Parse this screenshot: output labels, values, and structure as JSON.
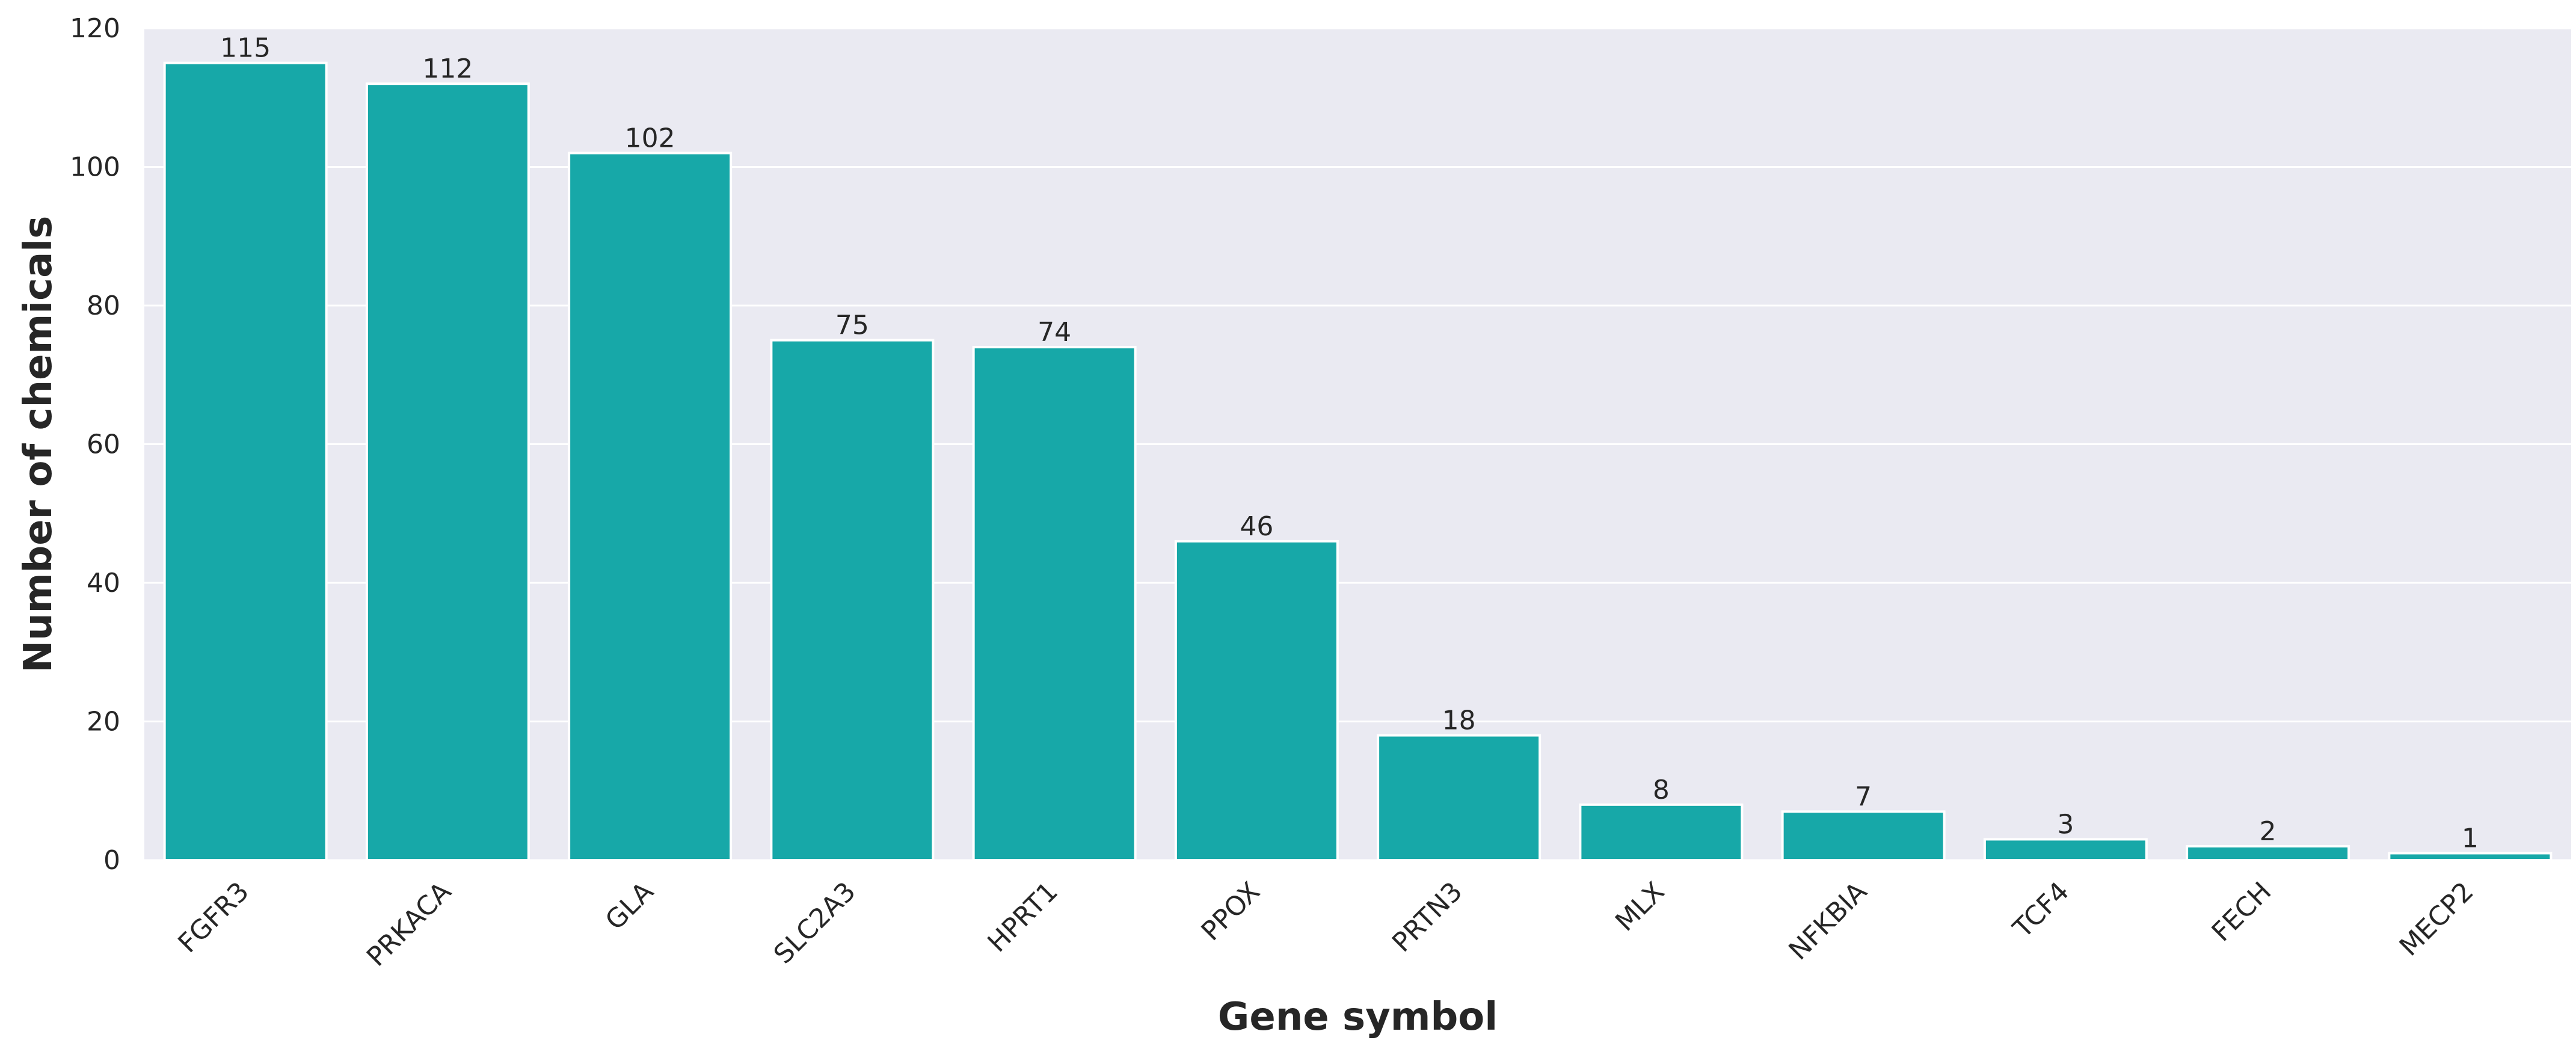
{
  "chart_data": {
    "type": "bar",
    "title": "",
    "xlabel": "Gene symbol",
    "ylabel": "Number of chemicals",
    "categories": [
      "FGFR3",
      "PRKACA",
      "GLA",
      "SLC2A3",
      "HPRT1",
      "PPOX",
      "PRTN3",
      "MLX",
      "NFKBIA",
      "TCF4",
      "FECH",
      "MECP2"
    ],
    "values": [
      115,
      112,
      102,
      75,
      74,
      46,
      18,
      8,
      7,
      3,
      2,
      1
    ],
    "data_labels": [
      "115",
      "112",
      "102",
      "75",
      "74",
      "46",
      "18",
      "8",
      "7",
      "3",
      "2",
      "1"
    ],
    "ylim": [
      0,
      120
    ],
    "yticks": [
      0,
      20,
      40,
      60,
      80,
      100,
      120
    ],
    "ytick_labels": [
      "0",
      "20",
      "40",
      "60",
      "80",
      "100",
      "120"
    ],
    "grid": true,
    "legend": "none",
    "colors": {
      "bar": "#17a8a8",
      "plot_background": "#eaeaf2",
      "grid": "#ffffff",
      "text": "#262626"
    }
  }
}
